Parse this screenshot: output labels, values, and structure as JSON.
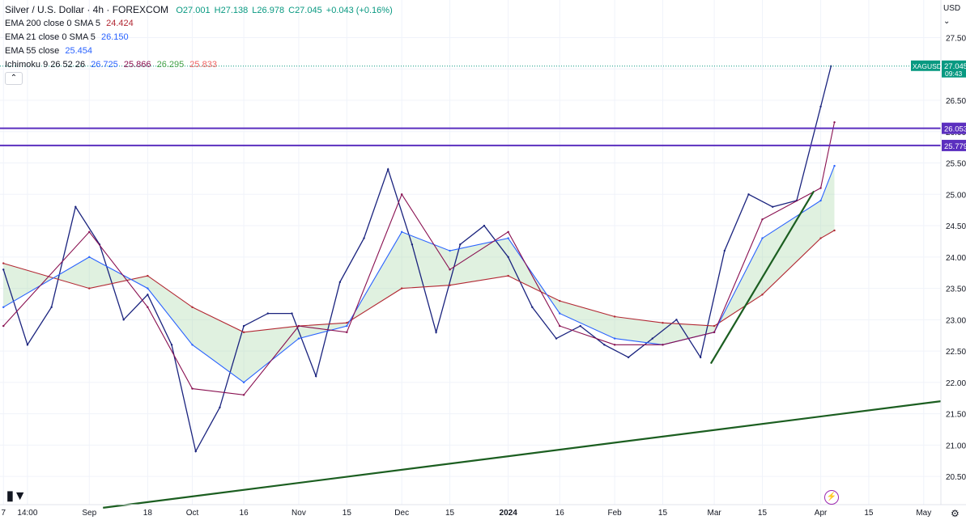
{
  "legend": {
    "symbol": "Silver / U.S. Dollar · 4h · FOREXCOM",
    "open": "O27.001",
    "high": "H27.138",
    "low": "L26.978",
    "close": "C27.045",
    "change": "+0.043 (+0.16%)",
    "indicators": [
      {
        "label": "EMA 200 close 0 SMA 5",
        "values": [
          "24.424"
        ],
        "colors": [
          "#b22833"
        ]
      },
      {
        "label": "EMA 21 close 0 SMA 5",
        "values": [
          "26.150"
        ],
        "colors": [
          "#2962ff"
        ]
      },
      {
        "label": "EMA 55 close",
        "values": [
          "25.454"
        ],
        "colors": [
          "#2962ff"
        ]
      },
      {
        "label": "Ichimoku 9 26 52 26",
        "values": [
          "26.725",
          "25.866",
          "26.295",
          "25.833"
        ],
        "colors": [
          "#2962ff",
          "#880e4f",
          "#43a047",
          "#f06262"
        ]
      }
    ]
  },
  "collapse_icon": "chevron-up",
  "currency": "USD",
  "price_labels": {
    "symbol_tag": "XAGUSD",
    "last_price": "27.045",
    "countdown": "09:43",
    "level_1": "26.053",
    "level_2": "25.779"
  },
  "colors": {
    "up": "#089981",
    "level_line": "#5b2fbf",
    "trendline": "#1b5e20",
    "ema200": "#b22833",
    "ema_blue": "#2962ff",
    "kijun": "#880e4f",
    "cloud_green": "#a5d6a7",
    "cloud_red": "#f5b7b1",
    "candle": "#1a237e"
  },
  "chart_data": {
    "type": "line",
    "y_ticks": [
      27.5,
      27.0,
      26.5,
      26.0,
      25.5,
      25.0,
      24.5,
      24.0,
      23.5,
      23.0,
      22.5,
      22.0,
      21.5,
      21.0,
      20.5
    ],
    "y_tick_labels": [
      "27.500",
      "27.000",
      "26.500",
      "26.000",
      "25.500",
      "25.000",
      "24.500",
      "24.000",
      "23.500",
      "23.000",
      "22.500",
      "22.000",
      "21.500",
      "21.000",
      "20.500"
    ],
    "ylim": [
      20.05,
      28.1
    ],
    "x_ticks": [
      "7",
      "14:00",
      "Sep",
      "18",
      "Oct",
      "16",
      "Nov",
      "15",
      "Dec",
      "15",
      "2024",
      "16",
      "Feb",
      "15",
      "Mar",
      "15",
      "Apr",
      "15",
      "May"
    ],
    "x_tick_dates": [
      "2023-08-07",
      "2023-08-14",
      "2023-09-01",
      "2023-09-18",
      "2023-10-01",
      "2023-10-16",
      "2023-11-01",
      "2023-11-15",
      "2023-12-01",
      "2023-12-15",
      "2024-01-01",
      "2024-01-16",
      "2024-02-01",
      "2024-02-15",
      "2024-03-01",
      "2024-03-15",
      "2024-04-01",
      "2024-04-15",
      "2024-05-01"
    ],
    "xlim": [
      "2023-08-06",
      "2024-05-06"
    ],
    "horizontal_levels": [
      26.053,
      25.779
    ],
    "last_price": 27.045,
    "trendlines": [
      {
        "from": {
          "date": "2023-09-05",
          "y": 20.0
        },
        "to": {
          "date": "2024-05-06",
          "y": 21.7
        }
      },
      {
        "from": {
          "date": "2024-02-29",
          "y": 22.3
        },
        "to": {
          "date": "2024-03-30",
          "y": 25.05
        }
      }
    ],
    "series": [
      {
        "name": "Price",
        "dates": [
          "2023-08-07",
          "2023-08-14",
          "2023-08-21",
          "2023-08-28",
          "2023-09-04",
          "2023-09-11",
          "2023-09-18",
          "2023-09-25",
          "2023-10-02",
          "2023-10-09",
          "2023-10-16",
          "2023-10-23",
          "2023-10-30",
          "2023-11-06",
          "2023-11-13",
          "2023-11-20",
          "2023-11-27",
          "2023-12-04",
          "2023-12-11",
          "2023-12-18",
          "2023-12-25",
          "2024-01-01",
          "2024-01-08",
          "2024-01-15",
          "2024-01-22",
          "2024-01-29",
          "2024-02-05",
          "2024-02-12",
          "2024-02-19",
          "2024-02-26",
          "2024-03-04",
          "2024-03-11",
          "2024-03-18",
          "2024-03-25",
          "2024-04-01",
          "2024-04-04"
        ],
        "values": [
          23.8,
          22.6,
          23.2,
          24.8,
          24.2,
          23.0,
          23.4,
          22.6,
          20.9,
          21.6,
          22.9,
          23.1,
          23.1,
          22.1,
          23.6,
          24.3,
          25.4,
          24.2,
          22.8,
          24.2,
          24.5,
          24.0,
          23.2,
          22.7,
          22.9,
          22.6,
          22.4,
          22.7,
          23.0,
          22.4,
          24.1,
          25.0,
          24.8,
          24.9,
          26.4,
          27.045
        ]
      },
      {
        "name": "EMA 200",
        "dates": [
          "2023-08-07",
          "2023-09-01",
          "2023-09-18",
          "2023-10-01",
          "2023-10-16",
          "2023-11-01",
          "2023-11-15",
          "2023-12-01",
          "2023-12-15",
          "2024-01-01",
          "2024-01-16",
          "2024-02-01",
          "2024-02-15",
          "2024-03-01",
          "2024-03-15",
          "2024-04-01",
          "2024-04-05"
        ],
        "values": [
          23.9,
          23.5,
          23.7,
          23.2,
          22.8,
          22.9,
          22.95,
          23.5,
          23.55,
          23.7,
          23.3,
          23.05,
          22.95,
          22.9,
          23.4,
          24.3,
          24.424
        ]
      },
      {
        "name": "EMA 55",
        "dates": [
          "2023-08-07",
          "2023-09-01",
          "2023-09-18",
          "2023-10-01",
          "2023-10-16",
          "2023-11-01",
          "2023-11-15",
          "2023-12-01",
          "2023-12-15",
          "2024-01-01",
          "2024-01-16",
          "2024-02-01",
          "2024-02-15",
          "2024-03-01",
          "2024-03-15",
          "2024-04-01",
          "2024-04-05"
        ],
        "values": [
          23.2,
          24.0,
          23.5,
          22.6,
          22.0,
          22.7,
          22.9,
          24.4,
          24.1,
          24.3,
          23.1,
          22.7,
          22.6,
          22.8,
          24.3,
          24.9,
          25.454
        ]
      },
      {
        "name": "EMA 21",
        "dates": [
          "2023-08-07",
          "2023-09-01",
          "2023-09-18",
          "2023-10-01",
          "2023-10-16",
          "2023-11-01",
          "2023-11-15",
          "2023-12-01",
          "2023-12-15",
          "2024-01-01",
          "2024-01-16",
          "2024-02-01",
          "2024-02-15",
          "2024-03-01",
          "2024-03-15",
          "2024-04-01",
          "2024-04-05"
        ],
        "values": [
          22.9,
          24.4,
          23.2,
          21.9,
          21.8,
          22.9,
          22.8,
          25.0,
          23.8,
          24.4,
          22.9,
          22.6,
          22.6,
          22.8,
          24.6,
          25.1,
          26.15
        ]
      }
    ]
  }
}
